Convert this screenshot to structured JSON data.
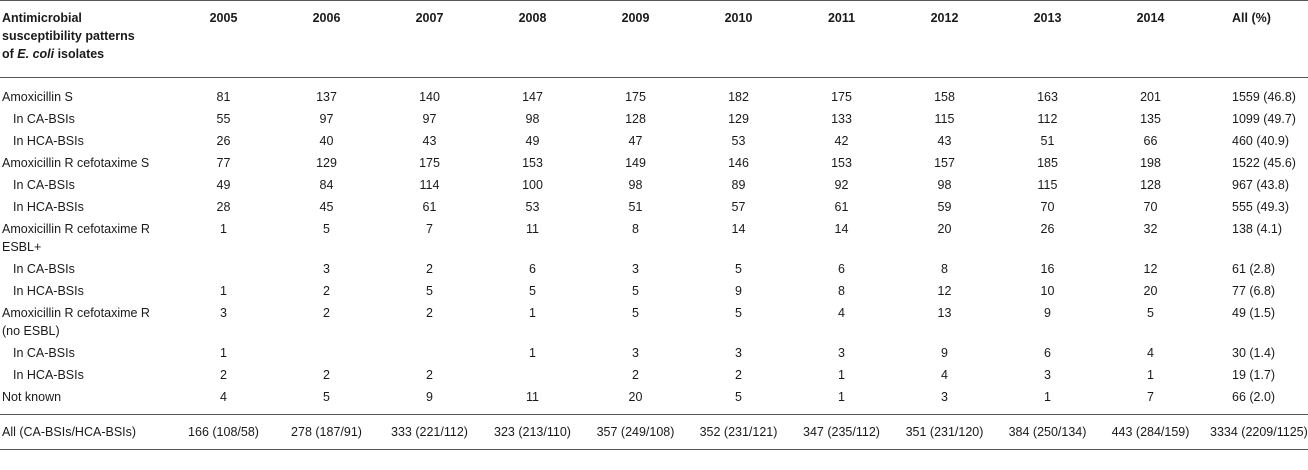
{
  "header": {
    "first": [
      "Antimicrobial",
      "susceptibility patterns",
      "of ",
      "E. coli",
      " isolates"
    ],
    "years": [
      "2005",
      "2006",
      "2007",
      "2008",
      "2009",
      "2010",
      "2011",
      "2012",
      "2013",
      "2014"
    ],
    "all": "All (%)"
  },
  "rows": [
    {
      "label": "Amoxicillin S",
      "sub": false,
      "values": [
        "81",
        "137",
        "140",
        "147",
        "175",
        "182",
        "175",
        "158",
        "163",
        "201"
      ],
      "all": "1559 (46.8)"
    },
    {
      "label": "In CA-BSIs",
      "sub": true,
      "values": [
        "55",
        "97",
        "97",
        "98",
        "128",
        "129",
        "133",
        "115",
        "112",
        "135"
      ],
      "all": "1099 (49.7)"
    },
    {
      "label": "In HCA-BSIs",
      "sub": true,
      "values": [
        "26",
        "40",
        "43",
        "49",
        "47",
        "53",
        "42",
        "43",
        "51",
        "66"
      ],
      "all": "460 (40.9)"
    },
    {
      "label": "Amoxicillin R cefotaxime S",
      "sub": false,
      "values": [
        "77",
        "129",
        "175",
        "153",
        "149",
        "146",
        "153",
        "157",
        "185",
        "198"
      ],
      "all": "1522 (45.6)"
    },
    {
      "label": "In CA-BSIs",
      "sub": true,
      "values": [
        "49",
        "84",
        "114",
        "100",
        "98",
        "89",
        "92",
        "98",
        "115",
        "128"
      ],
      "all": "967 (43.8)"
    },
    {
      "label": "In HCA-BSIs",
      "sub": true,
      "values": [
        "28",
        "45",
        "61",
        "53",
        "51",
        "57",
        "61",
        "59",
        "70",
        "70"
      ],
      "all": "555 (49.3)"
    },
    {
      "label": "Amoxicillin R cefotaxime R ESBL+",
      "sub": false,
      "values": [
        "1",
        "5",
        "7",
        "11",
        "8",
        "14",
        "14",
        "20",
        "26",
        "32"
      ],
      "all": "138 (4.1)"
    },
    {
      "label": "In CA-BSIs",
      "sub": true,
      "values": [
        "",
        "3",
        "2",
        "6",
        "3",
        "5",
        "6",
        "8",
        "16",
        "12"
      ],
      "all": "61 (2.8)"
    },
    {
      "label": "In HCA-BSIs",
      "sub": true,
      "values": [
        "1",
        "2",
        "5",
        "5",
        "5",
        "9",
        "8",
        "12",
        "10",
        "20"
      ],
      "all": "77 (6.8)"
    },
    {
      "label": "Amoxicillin R cefotaxime R (no ESBL)",
      "sub": false,
      "values": [
        "3",
        "2",
        "2",
        "1",
        "5",
        "5",
        "4",
        "13",
        "9",
        "5"
      ],
      "all": "49 (1.5)"
    },
    {
      "label": "In CA-BSIs",
      "sub": true,
      "values": [
        "1",
        "",
        "",
        "1",
        "3",
        "3",
        "3",
        "9",
        "6",
        "4"
      ],
      "all": "30 (1.4)"
    },
    {
      "label": "In HCA-BSIs",
      "sub": true,
      "values": [
        "2",
        "2",
        "2",
        "",
        "2",
        "2",
        "1",
        "4",
        "3",
        "1"
      ],
      "all": "19 (1.7)"
    },
    {
      "label": "Not known",
      "sub": false,
      "values": [
        "4",
        "5",
        "9",
        "11",
        "20",
        "5",
        "1",
        "3",
        "1",
        "7"
      ],
      "all": "66 (2.0)"
    }
  ],
  "total": {
    "label": "All (CA-BSIs/HCA-BSIs)",
    "values": [
      "166 (108/58)",
      "278 (187/91)",
      "333 (221/112)",
      "323 (213/110)",
      "357 (249/108)",
      "352 (231/121)",
      "347 (235/112)",
      "351 (231/120)",
      "384 (250/134)",
      "443 (284/159)"
    ],
    "all": "3334 (2209/1125)"
  }
}
